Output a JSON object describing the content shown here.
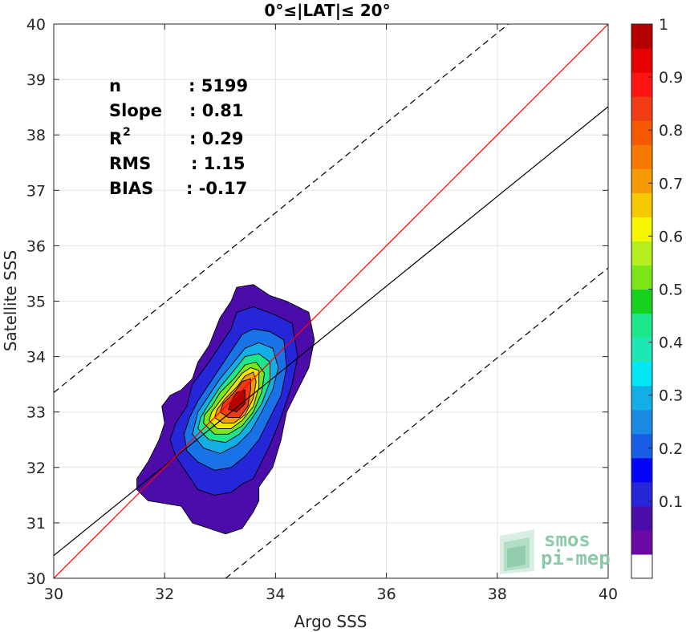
{
  "chart_data": {
    "type": "heatmap",
    "title": "0°≤|LAT|≤ 20°",
    "xlabel": "Argo SSS",
    "ylabel": "Satellite SSS",
    "xlim": [
      30,
      40
    ],
    "ylim": [
      30,
      40
    ],
    "xticks": [
      "30",
      "32",
      "34",
      "36",
      "38",
      "40"
    ],
    "yticks": [
      "30",
      "31",
      "32",
      "33",
      "34",
      "35",
      "36",
      "37",
      "38",
      "39",
      "40"
    ],
    "grid": true,
    "stats": [
      {
        "label": "n",
        "value": ": 5199"
      },
      {
        "label": "Slope",
        "value": ": 0.81"
      },
      {
        "label": "R",
        "sup": "2",
        "value": ": 0.29"
      },
      {
        "label": "RMS",
        "value": ": 1.15"
      },
      {
        "label": "BIAS",
        "value": ": -0.17"
      }
    ],
    "lines": {
      "identity": {
        "x": [
          30,
          40
        ],
        "y": [
          30,
          40
        ],
        "color": "#ff0000"
      },
      "regression": {
        "x": [
          30,
          40
        ],
        "y": [
          30.41,
          38.51
        ],
        "color": "#000000"
      },
      "upper_bound": {
        "x": [
          30,
          38.2
        ],
        "y": [
          33.35,
          40
        ],
        "color": "#000000",
        "style": "dashed"
      },
      "lower_bound": {
        "x": [
          33.1,
          40
        ],
        "y": [
          30,
          35.6
        ],
        "color": "#000000",
        "style": "dashed"
      }
    },
    "density_contours": [
      {
        "level": 0.05,
        "color": "#4b0caa",
        "points": [
          [
            31.5,
            31.6
          ],
          [
            31.7,
            31.4
          ],
          [
            32.0,
            31.35
          ],
          [
            32.3,
            31.3
          ],
          [
            32.5,
            31.0
          ],
          [
            32.8,
            30.9
          ],
          [
            33.1,
            30.8
          ],
          [
            33.4,
            30.9
          ],
          [
            33.6,
            31.2
          ],
          [
            33.7,
            31.4
          ],
          [
            33.7,
            31.65
          ],
          [
            33.95,
            32.0
          ],
          [
            34.1,
            32.5
          ],
          [
            34.2,
            33.0
          ],
          [
            34.4,
            33.4
          ],
          [
            34.6,
            33.8
          ],
          [
            34.7,
            34.3
          ],
          [
            34.6,
            34.8
          ],
          [
            34.2,
            35.0
          ],
          [
            33.9,
            35.1
          ],
          [
            33.6,
            35.3
          ],
          [
            33.3,
            35.25
          ],
          [
            33.2,
            35.0
          ],
          [
            33.0,
            34.7
          ],
          [
            32.8,
            34.2
          ],
          [
            32.6,
            33.9
          ],
          [
            32.5,
            33.6
          ],
          [
            32.3,
            33.4
          ],
          [
            32.1,
            33.3
          ],
          [
            31.95,
            33.1
          ],
          [
            32.0,
            32.8
          ],
          [
            31.9,
            32.5
          ],
          [
            31.7,
            32.1
          ],
          [
            31.5,
            31.8
          ]
        ]
      },
      {
        "level": 0.15,
        "color": "#2626d9",
        "points": [
          [
            32.2,
            32.2
          ],
          [
            32.4,
            31.9
          ],
          [
            32.6,
            31.6
          ],
          [
            32.9,
            31.5
          ],
          [
            33.2,
            31.55
          ],
          [
            33.4,
            31.7
          ],
          [
            33.6,
            31.8
          ],
          [
            33.9,
            32.4
          ],
          [
            34.1,
            32.9
          ],
          [
            34.3,
            33.5
          ],
          [
            34.4,
            34.0
          ],
          [
            34.3,
            34.6
          ],
          [
            34.0,
            34.75
          ],
          [
            33.6,
            34.9
          ],
          [
            33.3,
            34.8
          ],
          [
            33.2,
            34.5
          ],
          [
            33.0,
            34.2
          ],
          [
            32.8,
            33.9
          ],
          [
            32.5,
            33.5
          ],
          [
            32.4,
            33.1
          ],
          [
            32.2,
            32.8
          ],
          [
            32.1,
            32.5
          ]
        ]
      },
      {
        "level": 0.25,
        "color": "#1a73e6",
        "points": [
          [
            32.4,
            32.3
          ],
          [
            32.6,
            32.1
          ],
          [
            32.9,
            31.95
          ],
          [
            33.2,
            32.0
          ],
          [
            33.45,
            32.2
          ],
          [
            33.7,
            32.5
          ],
          [
            33.9,
            32.9
          ],
          [
            34.1,
            33.3
          ],
          [
            34.2,
            33.8
          ],
          [
            34.15,
            34.3
          ],
          [
            33.9,
            34.45
          ],
          [
            33.6,
            34.5
          ],
          [
            33.4,
            34.4
          ],
          [
            33.2,
            34.1
          ],
          [
            33.0,
            33.8
          ],
          [
            32.8,
            33.5
          ],
          [
            32.6,
            33.2
          ],
          [
            32.45,
            32.9
          ],
          [
            32.35,
            32.6
          ]
        ]
      },
      {
        "level": 0.35,
        "color": "#14aee6",
        "points": [
          [
            32.5,
            32.6
          ],
          [
            32.7,
            32.35
          ],
          [
            33.0,
            32.25
          ],
          [
            33.3,
            32.4
          ],
          [
            33.55,
            32.65
          ],
          [
            33.75,
            33.0
          ],
          [
            33.95,
            33.4
          ],
          [
            34.05,
            33.8
          ],
          [
            33.95,
            34.15
          ],
          [
            33.7,
            34.25
          ],
          [
            33.45,
            34.15
          ],
          [
            33.25,
            33.9
          ],
          [
            33.0,
            33.6
          ],
          [
            32.8,
            33.3
          ],
          [
            32.6,
            33.0
          ]
        ]
      },
      {
        "level": 0.45,
        "color": "#1ee68c",
        "points": [
          [
            32.6,
            32.7
          ],
          [
            32.8,
            32.5
          ],
          [
            33.1,
            32.45
          ],
          [
            33.35,
            32.6
          ],
          [
            33.55,
            32.85
          ],
          [
            33.75,
            33.15
          ],
          [
            33.9,
            33.55
          ],
          [
            33.9,
            33.9
          ],
          [
            33.7,
            34.05
          ],
          [
            33.45,
            34.0
          ],
          [
            33.25,
            33.75
          ],
          [
            33.0,
            33.45
          ],
          [
            32.8,
            33.15
          ],
          [
            32.65,
            32.9
          ]
        ]
      },
      {
        "level": 0.55,
        "color": "#7de619",
        "points": [
          [
            32.7,
            32.8
          ],
          [
            32.9,
            32.6
          ],
          [
            33.15,
            32.6
          ],
          [
            33.4,
            32.75
          ],
          [
            33.6,
            33.0
          ],
          [
            33.75,
            33.35
          ],
          [
            33.8,
            33.7
          ],
          [
            33.65,
            33.9
          ],
          [
            33.45,
            33.85
          ],
          [
            33.25,
            33.6
          ],
          [
            33.0,
            33.35
          ],
          [
            32.85,
            33.1
          ],
          [
            32.72,
            32.95
          ]
        ]
      },
      {
        "level": 0.65,
        "color": "#f0e600",
        "points": [
          [
            32.8,
            32.85
          ],
          [
            32.95,
            32.7
          ],
          [
            33.2,
            32.7
          ],
          [
            33.4,
            32.85
          ],
          [
            33.6,
            33.1
          ],
          [
            33.7,
            33.45
          ],
          [
            33.7,
            33.75
          ],
          [
            33.55,
            33.8
          ],
          [
            33.4,
            33.7
          ],
          [
            33.2,
            33.45
          ],
          [
            33.0,
            33.2
          ],
          [
            32.85,
            33.0
          ]
        ]
      },
      {
        "level": 0.75,
        "color": "#f59a00",
        "points": [
          [
            32.9,
            32.9
          ],
          [
            33.05,
            32.8
          ],
          [
            33.25,
            32.8
          ],
          [
            33.45,
            32.95
          ],
          [
            33.6,
            33.25
          ],
          [
            33.65,
            33.55
          ],
          [
            33.6,
            33.72
          ],
          [
            33.45,
            33.65
          ],
          [
            33.3,
            33.45
          ],
          [
            33.1,
            33.25
          ],
          [
            32.95,
            33.05
          ]
        ]
      },
      {
        "level": 0.85,
        "color": "#f03c14",
        "points": [
          [
            33.0,
            33.0
          ],
          [
            33.15,
            32.9
          ],
          [
            33.35,
            32.9
          ],
          [
            33.5,
            33.1
          ],
          [
            33.55,
            33.4
          ],
          [
            33.55,
            33.6
          ],
          [
            33.4,
            33.55
          ],
          [
            33.25,
            33.35
          ],
          [
            33.05,
            33.15
          ]
        ]
      },
      {
        "level": 0.95,
        "color": "#b40000",
        "points": [
          [
            33.15,
            33.05
          ],
          [
            33.3,
            33.0
          ],
          [
            33.45,
            33.15
          ],
          [
            33.45,
            33.4
          ],
          [
            33.3,
            33.35
          ],
          [
            33.2,
            33.2
          ]
        ]
      }
    ],
    "colorbar": {
      "range": [
        0,
        1
      ],
      "ticks": [
        "0.1",
        "0.2",
        "0.3",
        "0.4",
        "0.5",
        "0.6",
        "0.7",
        "0.8",
        "0.9",
        "1"
      ],
      "colors": [
        "#ffffff",
        "#6a0aa6",
        "#4b0caa",
        "#2626d9",
        "#0505f5",
        "#1a5ce6",
        "#1a8ae6",
        "#14aee6",
        "#00e6f5",
        "#1ee6b4",
        "#1ee68c",
        "#14d21e",
        "#7de619",
        "#b4f01e",
        "#f5f500",
        "#f5c800",
        "#f59a00",
        "#f57800",
        "#f55a00",
        "#f03c14",
        "#ff1414",
        "#e60000",
        "#b40000"
      ]
    }
  },
  "watermark": {
    "line1": "smos",
    "line2": "pi-mep"
  }
}
